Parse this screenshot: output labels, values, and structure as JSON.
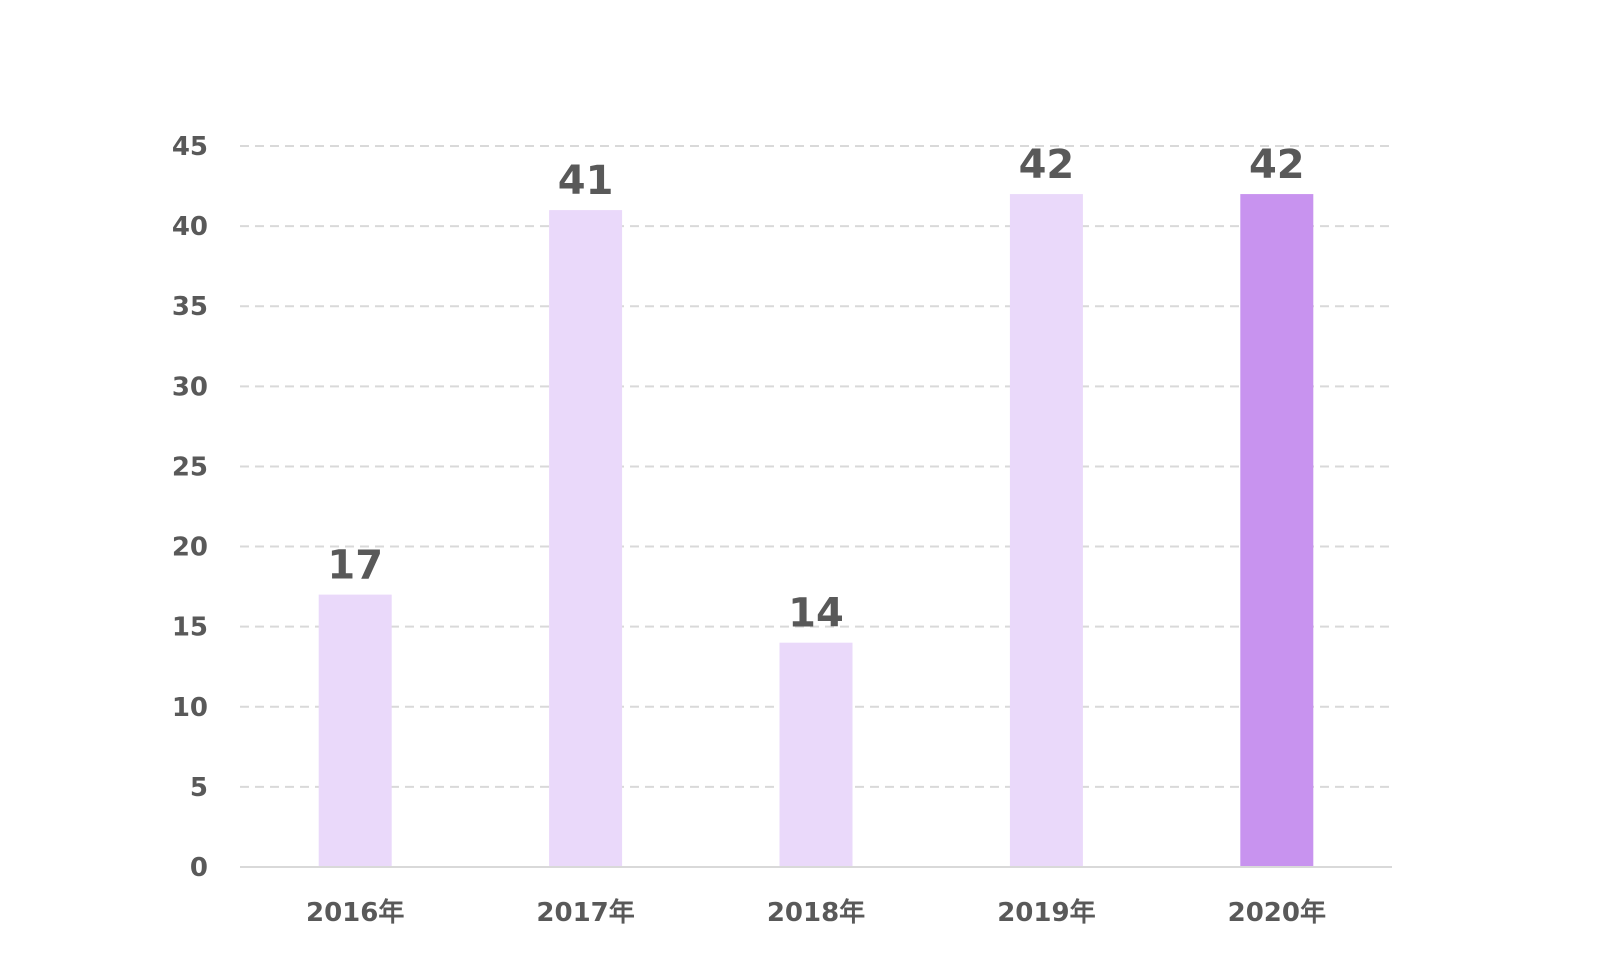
{
  "chart_data": {
    "type": "bar",
    "categories": [
      "2016年",
      "2017年",
      "2018年",
      "2019年",
      "2020年"
    ],
    "values": [
      17,
      41,
      14,
      42,
      42
    ],
    "ylim": [
      0,
      45
    ],
    "yticks": [
      0,
      5,
      10,
      15,
      20,
      25,
      30,
      35,
      40,
      45
    ],
    "grid": true,
    "data_labels": true,
    "colors": {
      "bar": "#EAD9FA",
      "highlight_bar": "#C893EF",
      "grid": "#D9D9D9",
      "axis": "#D9D9D9",
      "text": "#595959"
    },
    "highlight_index": 4
  }
}
